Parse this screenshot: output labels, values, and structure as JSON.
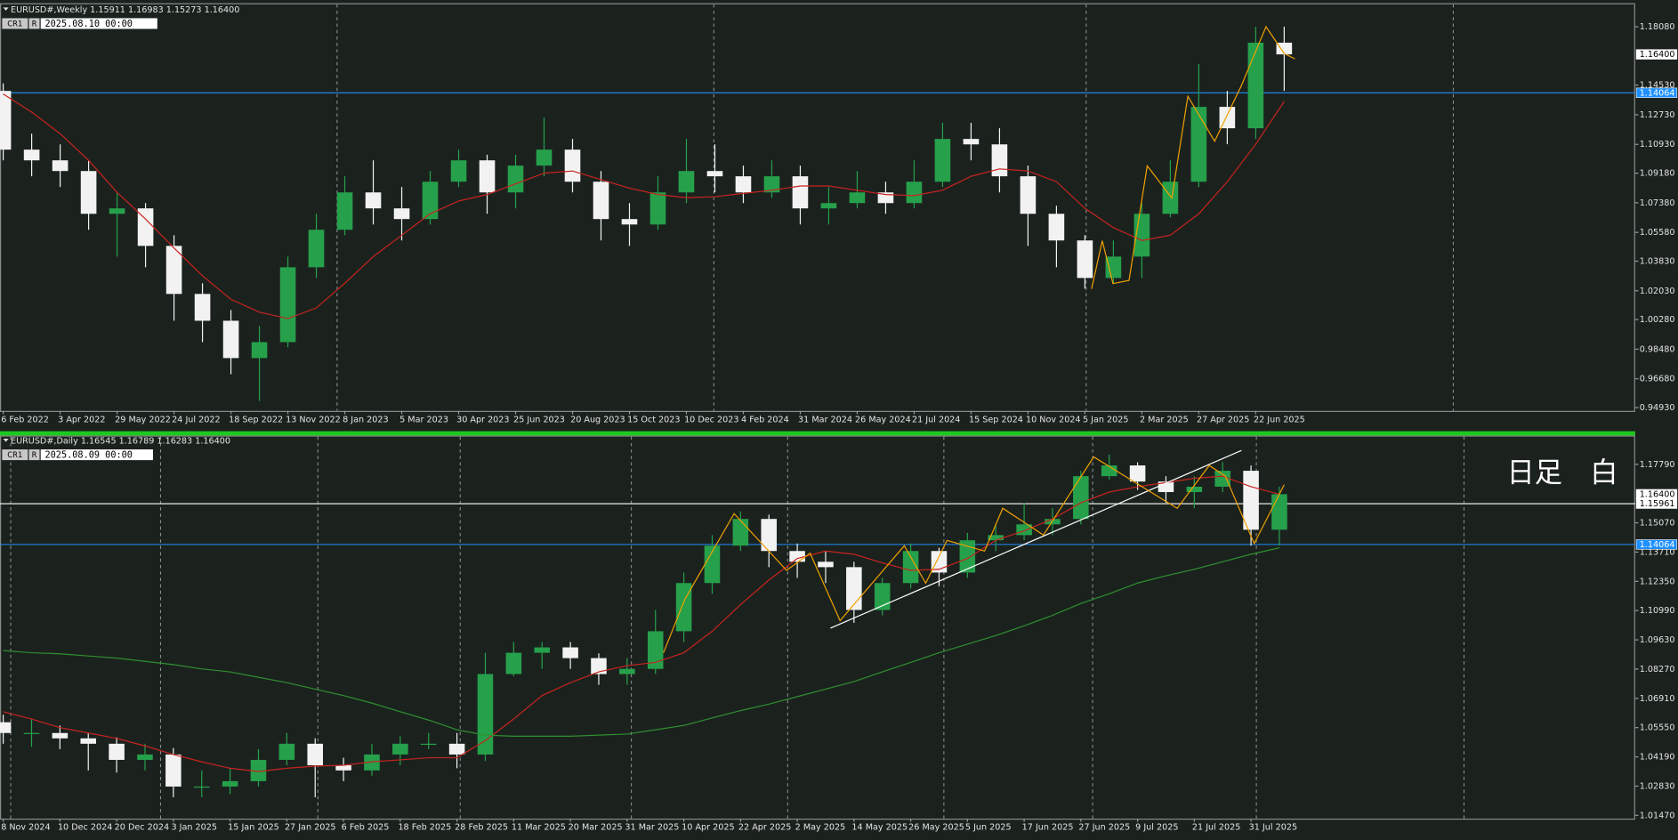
{
  "chart_data": [
    {
      "type": "candlestick",
      "title": "EURUSD#,Weekly  1.15911 1.16983 1.15273 1.16400",
      "tags": [
        "CR1",
        "R"
      ],
      "time": "2025.08.10 00:00",
      "categories": [
        "6 Feb 2022",
        null,
        "3 Apr 2022",
        null,
        "29 May 2022",
        null,
        "24 Jul 2022",
        null,
        "18 Sep 2022",
        null,
        "13 Nov 2022",
        null,
        "8 Jan 2023",
        null,
        "5 Mar 2023",
        null,
        "30 Apr 2023",
        null,
        "25 Jun 2023",
        null,
        "20 Aug 2023",
        null,
        "15 Oct 2023",
        null,
        "10 Dec 2023",
        null,
        "4 Feb 2024",
        null,
        "31 Mar 2024",
        null,
        "26 May 2024",
        null,
        "21 Jul 2024",
        null,
        "15 Sep 2024",
        null,
        "10 Nov 2024",
        null,
        "5 Jan 2025",
        null,
        "2 Mar 2025",
        null,
        "27 Apr 2025",
        null,
        "22 Jun 2025",
        null
      ],
      "open": [
        1.1418,
        1.1061,
        1.0996,
        1.0931,
        1.0671,
        1.0704,
        1.0476,
        1.0184,
        1.0021,
        0.9794,
        0.9891,
        1.0346,
        1.0574,
        1.0801,
        1.0704,
        1.0639,
        1.0866,
        1.0996,
        1.0801,
        1.0964,
        1.1061,
        1.0866,
        1.0639,
        1.0606,
        1.0801,
        1.0931,
        1.0899,
        1.0801,
        1.0899,
        1.0704,
        1.0736,
        1.0801,
        1.0736,
        1.0866,
        1.1126,
        1.1093,
        1.0899,
        1.0671,
        1.0509,
        1.0281,
        1.0411,
        1.0671,
        1.0866,
        1.1321,
        1.1191,
        1.1711
      ],
      "high": [
        1.1464,
        1.1158,
        1.1093,
        1.0996,
        1.0801,
        1.0736,
        1.0541,
        1.0249,
        1.0086,
        0.9989,
        1.0411,
        1.0671,
        1.0899,
        1.0996,
        1.0834,
        1.0931,
        1.1061,
        1.103,
        1.1029,
        1.1256,
        1.1126,
        1.0931,
        1.0736,
        1.0899,
        1.1126,
        1.1093,
        1.0964,
        1.0996,
        1.0964,
        1.0834,
        1.0931,
        1.0866,
        1.0996,
        1.1224,
        1.1224,
        1.1191,
        1.0964,
        1.072,
        1.0541,
        1.0509,
        1.0736,
        1.0996,
        1.1581,
        1.1418,
        1.1808,
        1.1808
      ],
      "low": [
        1.0996,
        1.0899,
        1.0834,
        1.0574,
        1.0411,
        1.0346,
        1.0021,
        0.9891,
        0.9696,
        0.9534,
        0.986,
        1.0281,
        1.0541,
        1.0606,
        1.0509,
        1.0606,
        1.0834,
        1.0671,
        1.0704,
        1.0899,
        1.0801,
        1.0509,
        1.0476,
        1.0574,
        1.0736,
        1.0801,
        1.0736,
        1.0769,
        1.0606,
        1.0606,
        1.0704,
        1.0671,
        1.0704,
        1.0834,
        1.0996,
        1.0801,
        1.0476,
        1.0346,
        1.0216,
        1.0249,
        1.0281,
        1.065,
        1.0834,
        1.1094,
        1.1126,
        1.1418
      ],
      "close": [
        1.1061,
        1.0996,
        1.0931,
        1.0671,
        1.0704,
        1.0476,
        1.0184,
        1.0021,
        0.9794,
        0.9891,
        1.0346,
        1.0574,
        1.0801,
        1.0704,
        1.0639,
        1.0866,
        1.0996,
        1.0801,
        1.0964,
        1.1061,
        1.0866,
        1.0639,
        1.0606,
        1.0801,
        1.0931,
        1.0899,
        1.0801,
        1.0899,
        1.0704,
        1.0736,
        1.0801,
        1.0736,
        1.0866,
        1.1126,
        1.1093,
        1.0899,
        1.0671,
        1.0509,
        1.0281,
        1.0411,
        1.0671,
        1.0866,
        1.1321,
        1.1191,
        1.1711,
        1.164
      ],
      "up_color": "#26a04b",
      "down_color": "#f2f2f2",
      "lines": [
        {
          "color": "#c8231e",
          "values": [
            1.1399,
            1.1289,
            1.1158,
            1.0996,
            1.0801,
            1.0639,
            1.0463,
            1.0294,
            1.0151,
            1.0073,
            1.0034,
            1.0099,
            1.0249,
            1.0411,
            1.0541,
            1.0671,
            1.0749,
            1.0788,
            1.0853,
            1.0918,
            1.0931,
            1.0879,
            1.0827,
            1.0788,
            1.0769,
            1.0775,
            1.0795,
            1.0814,
            1.084,
            1.084,
            1.0814,
            1.0788,
            1.0782,
            1.0814,
            1.0899,
            1.0944,
            1.0931,
            1.0866,
            1.0704,
            1.0587,
            1.0509,
            1.0541,
            1.0671,
            1.0866,
            1.1094,
            1.1354
          ]
        }
      ],
      "ylim": [
        0.9473,
        1.1951
      ],
      "yticks": [
        {
          "value": 1.1808,
          "label": "1.18080"
        },
        {
          "value": 1.1453,
          "label": "1.14530"
        },
        {
          "value": 1.1273,
          "label": "1.12730"
        },
        {
          "value": 1.1093,
          "label": "1.10930"
        },
        {
          "value": 1.0918,
          "label": "1.09180"
        },
        {
          "value": 1.0738,
          "label": "1.07380"
        },
        {
          "value": 1.0558,
          "label": "1.05580"
        },
        {
          "value": 1.0383,
          "label": "1.03830"
        },
        {
          "value": 1.0203,
          "label": "1.02030"
        },
        {
          "value": 1.0028,
          "label": "1.00280"
        },
        {
          "value": 0.9848,
          "label": "0.98480"
        },
        {
          "value": 0.9668,
          "label": "0.96680"
        },
        {
          "value": 0.9493,
          "label": "0.94930"
        }
      ],
      "hlines": [
        {
          "value": 1.14064,
          "label": "1.14064",
          "color": "#1e90ff"
        }
      ],
      "last_price": {
        "value": 1.164,
        "label": "1.16400"
      }
    },
    {
      "type": "candlestick",
      "title": "EURUSD#,Daily  1.16545 1.16789 1.16283 1.16400",
      "tags": [
        "CR1",
        "R"
      ],
      "time": "2025.08.09 00:00",
      "annotation": "日足　白",
      "categories": [
        "8 Nov 2024",
        null,
        "10 Dec 2024",
        null,
        "20 Dec 2024",
        null,
        "3 Jan 2025",
        null,
        "15 Jan 2025",
        null,
        "27 Jan 2025",
        null,
        "6 Feb 2025",
        null,
        "18 Feb 2025",
        null,
        "28 Feb 2025",
        null,
        "11 Mar 2025",
        null,
        "20 Mar 2025",
        null,
        "31 Mar 2025",
        null,
        "10 Apr 2025",
        null,
        "22 Apr 2025",
        null,
        "2 May 2025",
        null,
        "14 May 2025",
        null,
        "26 May 2025",
        null,
        "5 Jun 2025",
        null,
        "17 Jun 2025",
        null,
        "27 Jun 2025",
        null,
        "9 Jul 2025",
        null,
        "21 Jul 2025",
        null,
        "31 Jul 2025",
        null
      ],
      "open": [
        1.058,
        1.053,
        1.053,
        1.0505,
        1.048,
        1.0405,
        1.043,
        1.0281,
        1.0281,
        1.0306,
        1.0405,
        1.048,
        1.038,
        1.0356,
        1.043,
        1.048,
        1.048,
        1.043,
        1.0804,
        1.0903,
        1.0928,
        1.0878,
        1.0804,
        1.0828,
        1.1003,
        1.1227,
        1.1401,
        1.1525,
        1.1376,
        1.1326,
        1.1301,
        1.1102,
        1.1227,
        1.1376,
        1.1276,
        1.1426,
        1.145,
        1.15,
        1.1525,
        1.1724,
        1.1774,
        1.1699,
        1.165,
        1.1675,
        1.1749,
        1.1475
      ],
      "high": [
        1.0615,
        1.0595,
        1.0565,
        1.053,
        1.051,
        1.048,
        1.046,
        1.0356,
        1.0366,
        1.0455,
        1.053,
        1.0505,
        1.0415,
        1.048,
        1.0515,
        1.053,
        1.053,
        1.0903,
        1.0953,
        1.0953,
        1.0953,
        1.09,
        1.0878,
        1.1102,
        1.1276,
        1.145,
        1.156,
        1.1545,
        1.1411,
        1.1376,
        1.1326,
        1.1251,
        1.1411,
        1.1391,
        1.146,
        1.15,
        1.16,
        1.1575,
        1.1749,
        1.1824,
        1.1789,
        1.1724,
        1.1724,
        1.1789,
        1.1774,
        1.1675
      ],
      "low": [
        1.048,
        1.0465,
        1.0455,
        1.0356,
        1.0346,
        1.0356,
        1.0231,
        1.0231,
        1.0246,
        1.0281,
        1.038,
        1.0231,
        1.0306,
        1.0331,
        1.038,
        1.0455,
        1.0366,
        1.04,
        1.0794,
        1.0828,
        1.0828,
        1.0754,
        1.0754,
        1.0804,
        1.0953,
        1.1177,
        1.1376,
        1.1301,
        1.1251,
        1.1227,
        1.1042,
        1.1077,
        1.1202,
        1.1212,
        1.1251,
        1.1376,
        1.1426,
        1.145,
        1.15,
        1.1709,
        1.166,
        1.16,
        1.1575,
        1.165,
        1.1401,
        1.1401
      ],
      "close": [
        1.053,
        1.053,
        1.0505,
        1.048,
        1.0405,
        1.043,
        1.0281,
        1.0281,
        1.0306,
        1.0405,
        1.048,
        1.038,
        1.0356,
        1.043,
        1.048,
        1.048,
        1.043,
        1.0804,
        1.0903,
        1.0928,
        1.0878,
        1.0804,
        1.0828,
        1.1003,
        1.1227,
        1.1401,
        1.1525,
        1.1376,
        1.1326,
        1.1301,
        1.1102,
        1.1227,
        1.1376,
        1.1276,
        1.1426,
        1.145,
        1.15,
        1.1525,
        1.1724,
        1.1774,
        1.1699,
        1.165,
        1.1675,
        1.1749,
        1.1475,
        1.164
      ],
      "up_color": "#26a04b",
      "down_color": "#f2f2f2",
      "lines": [
        {
          "color": "#c8231e",
          "values": [
            1.0629,
            1.0595,
            1.0555,
            1.053,
            1.0505,
            1.047,
            1.043,
            1.0396,
            1.0366,
            1.0351,
            1.0366,
            1.0376,
            1.038,
            1.0396,
            1.0405,
            1.0415,
            1.0415,
            1.0495,
            1.0595,
            1.0704,
            1.0764,
            1.0814,
            1.0843,
            1.0858,
            1.0903,
            1.1003,
            1.1127,
            1.1241,
            1.1341,
            1.1376,
            1.1361,
            1.1321,
            1.1286,
            1.1291,
            1.1341,
            1.1426,
            1.147,
            1.1525,
            1.16,
            1.165,
            1.1675,
            1.1694,
            1.1714,
            1.1724,
            1.1675,
            1.164
          ]
        },
        {
          "color": "#2f8f2f",
          "values": [
            1.0913,
            1.0903,
            1.0898,
            1.0888,
            1.0878,
            1.0863,
            1.0848,
            1.0828,
            1.0814,
            1.0789,
            1.0764,
            1.0734,
            1.0704,
            1.0669,
            1.0629,
            1.059,
            1.0545,
            1.052,
            1.0515,
            1.0515,
            1.0515,
            1.052,
            1.0525,
            1.0545,
            1.0565,
            1.06,
            1.0634,
            1.0664,
            1.0699,
            1.0734,
            1.0769,
            1.0814,
            1.0858,
            1.0903,
            1.0943,
            1.0983,
            1.1028,
            1.1077,
            1.1132,
            1.1177,
            1.1227,
            1.1261,
            1.1291,
            1.1326,
            1.1361,
            1.1391
          ]
        }
      ],
      "ylim": [
        1.0132,
        1.1908
      ],
      "yticks": [
        {
          "value": 1.1779,
          "label": "1.17790"
        },
        {
          "value": 1.1507,
          "label": "1.15070"
        },
        {
          "value": 1.1371,
          "label": "1.13710"
        },
        {
          "value": 1.1235,
          "label": "1.12350"
        },
        {
          "value": 1.1099,
          "label": "1.10990"
        },
        {
          "value": 1.0963,
          "label": "1.09630"
        },
        {
          "value": 1.0827,
          "label": "1.08270"
        },
        {
          "value": 1.0691,
          "label": "1.06910"
        },
        {
          "value": 1.0555,
          "label": "1.05550"
        },
        {
          "value": 1.0419,
          "label": "1.04190"
        },
        {
          "value": 1.0283,
          "label": "1.02830"
        },
        {
          "value": 1.0147,
          "label": "1.01470"
        }
      ],
      "hlines": [
        {
          "value": 1.14064,
          "label": "1.14064",
          "color": "#1e90ff"
        },
        {
          "value": 1.15961,
          "label": "1.15961",
          "color": "#ffffff"
        }
      ],
      "last_price": {
        "value": 1.164,
        "label": "1.16400"
      }
    }
  ]
}
